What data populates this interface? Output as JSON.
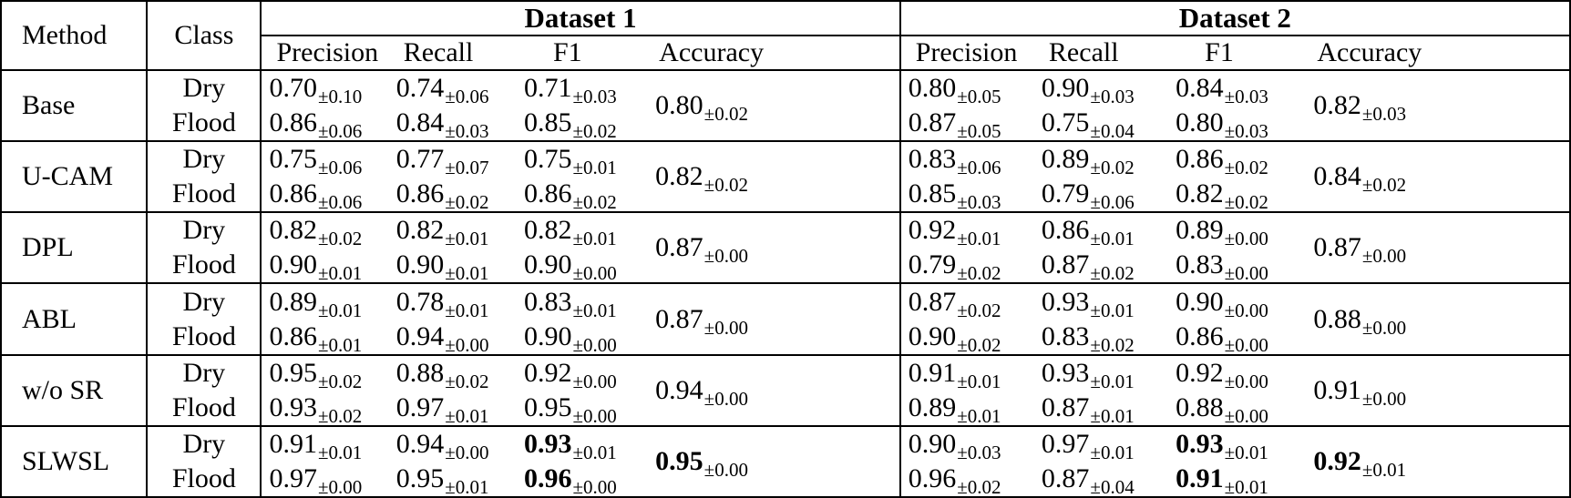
{
  "table": {
    "method_header": "Method",
    "class_header": "Class",
    "pm_sign": "±",
    "datasets": [
      {
        "label": "Dataset 1"
      },
      {
        "label": "Dataset 2"
      }
    ],
    "metric_headers": [
      "Precision",
      "Recall",
      "F1",
      "Accuracy"
    ],
    "rows": [
      {
        "method": "Base",
        "classes": [
          "Dry",
          "Flood"
        ],
        "d1_dry": [
          {
            "v": "0.70",
            "pm": "0.10"
          },
          {
            "v": "0.74",
            "pm": "0.06"
          },
          {
            "v": "0.71",
            "pm": "0.03"
          }
        ],
        "d1_flood": [
          {
            "v": "0.86",
            "pm": "0.06"
          },
          {
            "v": "0.84",
            "pm": "0.03"
          },
          {
            "v": "0.85",
            "pm": "0.02"
          }
        ],
        "d1_acc": {
          "v": "0.80",
          "pm": "0.02"
        },
        "d2_dry": [
          {
            "v": "0.80",
            "pm": "0.05"
          },
          {
            "v": "0.90",
            "pm": "0.03"
          },
          {
            "v": "0.84",
            "pm": "0.03"
          }
        ],
        "d2_flood": [
          {
            "v": "0.87",
            "pm": "0.05"
          },
          {
            "v": "0.75",
            "pm": "0.04"
          },
          {
            "v": "0.80",
            "pm": "0.03"
          }
        ],
        "d2_acc": {
          "v": "0.82",
          "pm": "0.03"
        }
      },
      {
        "method": "U-CAM",
        "classes": [
          "Dry",
          "Flood"
        ],
        "d1_dry": [
          {
            "v": "0.75",
            "pm": "0.06"
          },
          {
            "v": "0.77",
            "pm": "0.07"
          },
          {
            "v": "0.75",
            "pm": "0.01"
          }
        ],
        "d1_flood": [
          {
            "v": "0.86",
            "pm": "0.06"
          },
          {
            "v": "0.86",
            "pm": "0.02"
          },
          {
            "v": "0.86",
            "pm": "0.02"
          }
        ],
        "d1_acc": {
          "v": "0.82",
          "pm": "0.02"
        },
        "d2_dry": [
          {
            "v": "0.83",
            "pm": "0.06"
          },
          {
            "v": "0.89",
            "pm": "0.02"
          },
          {
            "v": "0.86",
            "pm": "0.02"
          }
        ],
        "d2_flood": [
          {
            "v": "0.85",
            "pm": "0.03"
          },
          {
            "v": "0.79",
            "pm": "0.06"
          },
          {
            "v": "0.82",
            "pm": "0.02"
          }
        ],
        "d2_acc": {
          "v": "0.84",
          "pm": "0.02"
        }
      },
      {
        "method": "DPL",
        "classes": [
          "Dry",
          "Flood"
        ],
        "d1_dry": [
          {
            "v": "0.82",
            "pm": "0.02"
          },
          {
            "v": "0.82",
            "pm": "0.01"
          },
          {
            "v": "0.82",
            "pm": "0.01"
          }
        ],
        "d1_flood": [
          {
            "v": "0.90",
            "pm": "0.01"
          },
          {
            "v": "0.90",
            "pm": "0.01"
          },
          {
            "v": "0.90",
            "pm": "0.00"
          }
        ],
        "d1_acc": {
          "v": "0.87",
          "pm": "0.00"
        },
        "d2_dry": [
          {
            "v": "0.92",
            "pm": "0.01"
          },
          {
            "v": "0.86",
            "pm": "0.01"
          },
          {
            "v": "0.89",
            "pm": "0.00"
          }
        ],
        "d2_flood": [
          {
            "v": "0.79",
            "pm": "0.02"
          },
          {
            "v": "0.87",
            "pm": "0.02"
          },
          {
            "v": "0.83",
            "pm": "0.00"
          }
        ],
        "d2_acc": {
          "v": "0.87",
          "pm": "0.00"
        }
      },
      {
        "method": "ABL",
        "classes": [
          "Dry",
          "Flood"
        ],
        "d1_dry": [
          {
            "v": "0.89",
            "pm": "0.01"
          },
          {
            "v": "0.78",
            "pm": "0.01"
          },
          {
            "v": "0.83",
            "pm": "0.01"
          }
        ],
        "d1_flood": [
          {
            "v": "0.86",
            "pm": "0.01"
          },
          {
            "v": "0.94",
            "pm": "0.00"
          },
          {
            "v": "0.90",
            "pm": "0.00"
          }
        ],
        "d1_acc": {
          "v": "0.87",
          "pm": "0.00"
        },
        "d2_dry": [
          {
            "v": "0.87",
            "pm": "0.02"
          },
          {
            "v": "0.93",
            "pm": "0.01"
          },
          {
            "v": "0.90",
            "pm": "0.00"
          }
        ],
        "d2_flood": [
          {
            "v": "0.90",
            "pm": "0.02"
          },
          {
            "v": "0.83",
            "pm": "0.02"
          },
          {
            "v": "0.86",
            "pm": "0.00"
          }
        ],
        "d2_acc": {
          "v": "0.88",
          "pm": "0.00"
        }
      },
      {
        "method": "w/o SR",
        "classes": [
          "Dry",
          "Flood"
        ],
        "d1_dry": [
          {
            "v": "0.95",
            "pm": "0.02"
          },
          {
            "v": "0.88",
            "pm": "0.02"
          },
          {
            "v": "0.92",
            "pm": "0.00"
          }
        ],
        "d1_flood": [
          {
            "v": "0.93",
            "pm": "0.02"
          },
          {
            "v": "0.97",
            "pm": "0.01"
          },
          {
            "v": "0.95",
            "pm": "0.00"
          }
        ],
        "d1_acc": {
          "v": "0.94",
          "pm": "0.00"
        },
        "d2_dry": [
          {
            "v": "0.91",
            "pm": "0.01"
          },
          {
            "v": "0.93",
            "pm": "0.01"
          },
          {
            "v": "0.92",
            "pm": "0.00"
          }
        ],
        "d2_flood": [
          {
            "v": "0.89",
            "pm": "0.01"
          },
          {
            "v": "0.87",
            "pm": "0.01"
          },
          {
            "v": "0.88",
            "pm": "0.00"
          }
        ],
        "d2_acc": {
          "v": "0.91",
          "pm": "0.00"
        }
      },
      {
        "method": "SLWSL",
        "classes": [
          "Dry",
          "Flood"
        ],
        "d1_dry": [
          {
            "v": "0.91",
            "pm": "0.01"
          },
          {
            "v": "0.94",
            "pm": "0.00"
          },
          {
            "v": "0.93",
            "pm": "0.01",
            "b": true
          }
        ],
        "d1_flood": [
          {
            "v": "0.97",
            "pm": "0.00"
          },
          {
            "v": "0.95",
            "pm": "0.01"
          },
          {
            "v": "0.96",
            "pm": "0.00",
            "b": true
          }
        ],
        "d1_acc": {
          "v": "0.95",
          "pm": "0.00",
          "b": true
        },
        "d2_dry": [
          {
            "v": "0.90",
            "pm": "0.03"
          },
          {
            "v": "0.97",
            "pm": "0.01"
          },
          {
            "v": "0.93",
            "pm": "0.01",
            "b": true
          }
        ],
        "d2_flood": [
          {
            "v": "0.96",
            "pm": "0.02"
          },
          {
            "v": "0.87",
            "pm": "0.04"
          },
          {
            "v": "0.91",
            "pm": "0.01",
            "b": true
          }
        ],
        "d2_acc": {
          "v": "0.92",
          "pm": "0.01",
          "b": true
        }
      }
    ]
  }
}
